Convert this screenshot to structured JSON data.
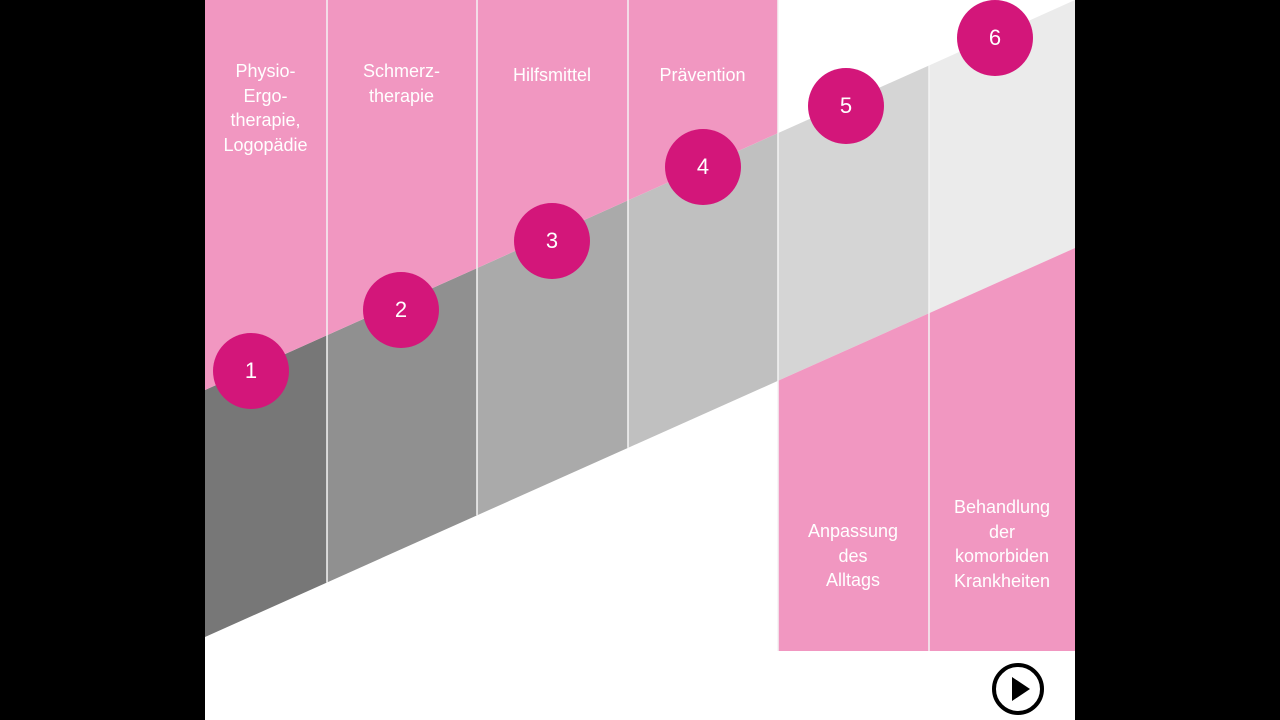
{
  "colors": {
    "pink": "#f197c1",
    "magenta": "#d3167a",
    "band": [
      "#777777",
      "#909090",
      "#aaaaaa",
      "#c0c0c0",
      "#d5d5d5",
      "#ebebeb"
    ]
  },
  "steps": [
    {
      "number": "1",
      "label_lines": [
        "Physio-",
        "Ergo-",
        "therapie,",
        "Logopädie"
      ]
    },
    {
      "number": "2",
      "label_lines": [
        "Schmerz-",
        "therapie"
      ]
    },
    {
      "number": "3",
      "label_lines": [
        "Hilfsmittel"
      ]
    },
    {
      "number": "4",
      "label_lines": [
        "Prävention"
      ]
    },
    {
      "number": "5",
      "label_lines": [
        "Anpassung",
        "des",
        "Alltags"
      ]
    },
    {
      "number": "6",
      "label_lines": [
        "Behandlung",
        "der",
        "komorbiden",
        "Krankheiten"
      ]
    }
  ],
  "controls": {
    "play_icon": "play-icon"
  }
}
